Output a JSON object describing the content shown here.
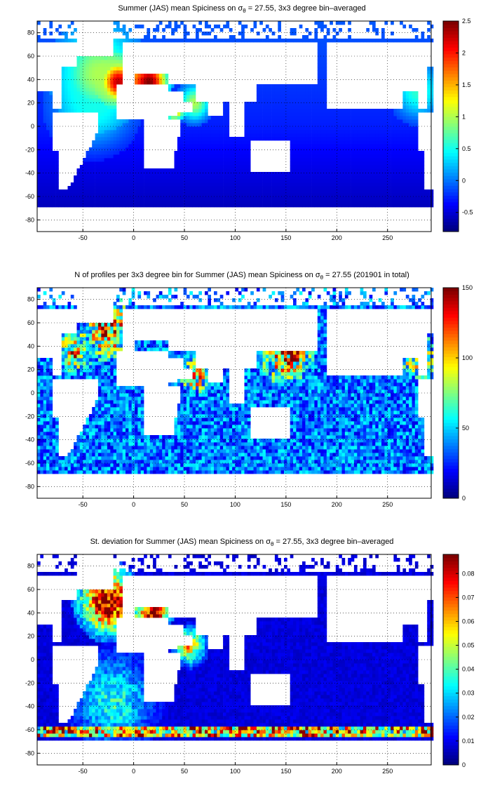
{
  "chart_data": [
    {
      "type": "heatmap",
      "title": {
        "pre": "Summer (JAS) mean Spiciness on ",
        "sym": "σ",
        "sub": "θ",
        "post": " = 27.55, 3x3 degree bin–averaged"
      },
      "xticks": [
        "-50",
        "0",
        "50",
        "100",
        "150",
        "200",
        "250"
      ],
      "yticks": [
        "80",
        "60",
        "40",
        "20",
        "0",
        "-20",
        "-40",
        "-60",
        "-80"
      ],
      "xlim": [
        -95,
        293
      ],
      "ylim": [
        -90,
        90
      ],
      "colorbar": {
        "min": -0.8,
        "max": 2.5,
        "ticks": [
          "2.5",
          "2",
          "1.5",
          "1",
          "0.5",
          "0",
          "-0.5"
        ]
      },
      "features": {
        "base": -0.3,
        "hotspots": [
          {
            "lon": -15,
            "lat": 38,
            "value": 2.3,
            "radius": 12
          },
          {
            "lon": -35,
            "lat": 45,
            "value": 1.0,
            "radius": 25
          },
          {
            "lon": 15,
            "lat": 38,
            "value": 2.5,
            "radius": 12
          },
          {
            "lon": 40,
            "lat": 15,
            "value": 2.2,
            "radius": 6
          },
          {
            "lon": 60,
            "lat": 20,
            "value": 1.0,
            "radius": 10
          },
          {
            "lon": -40,
            "lat": 20,
            "value": 0.5,
            "radius": 25
          },
          {
            "lon": 280,
            "lat": 30,
            "value": 0.6,
            "radius": 15
          }
        ]
      }
    },
    {
      "type": "heatmap",
      "title": {
        "pre": "N of profiles per 3x3 degree bin for Summer (JAS) mean Spiciness on ",
        "sym": "σ",
        "sub": "θ",
        "post": " = 27.55 (201901 in total)"
      },
      "xticks": [
        "-50",
        "0",
        "50",
        "100",
        "150",
        "200",
        "250"
      ],
      "yticks": [
        "80",
        "60",
        "40",
        "20",
        "0",
        "-20",
        "-40",
        "-60",
        "-80"
      ],
      "xlim": [
        -95,
        293
      ],
      "ylim": [
        -90,
        90
      ],
      "colorbar": {
        "min": 0,
        "max": 150,
        "ticks": [
          "150",
          "100",
          "50",
          "0"
        ]
      },
      "features": {
        "base": 40,
        "hotspots": [
          {
            "lon": 150,
            "lat": 35,
            "value": 140,
            "radius": 14
          },
          {
            "lon": -25,
            "lat": 55,
            "value": 130,
            "radius": 14
          },
          {
            "lon": -60,
            "lat": 35,
            "value": 110,
            "radius": 10
          },
          {
            "lon": 60,
            "lat": 15,
            "value": 120,
            "radius": 8
          },
          {
            "lon": 280,
            "lat": 30,
            "value": 110,
            "radius": 10
          }
        ]
      }
    },
    {
      "type": "heatmap",
      "title": {
        "pre": "St. deviation for Summer (JAS) mean Spiciness on ",
        "sym": "σ",
        "sub": "θ",
        "post": " = 27.55, 3x3 degree bin–averaged"
      },
      "xticks": [
        "-50",
        "0",
        "50",
        "100",
        "150",
        "200",
        "250"
      ],
      "yticks": [
        "80",
        "60",
        "40",
        "20",
        "0",
        "-20",
        "-40",
        "-60",
        "-80"
      ],
      "xlim": [
        -95,
        293
      ],
      "ylim": [
        -90,
        90
      ],
      "colorbar": {
        "min": 0,
        "max": 0.088,
        "ticks": [
          "0.08",
          "0.07",
          "0.06",
          "0.05",
          "0.04",
          "0.03",
          "0.02",
          "0.01",
          "0"
        ]
      },
      "features": {
        "base": 0.008,
        "hotspots": [
          {
            "lon": -25,
            "lat": 50,
            "value": 0.088,
            "radius": 18
          },
          {
            "lon": 20,
            "lat": 40,
            "value": 0.088,
            "radius": 10
          },
          {
            "lon": 55,
            "lat": 12,
            "value": 0.06,
            "radius": 10
          },
          {
            "lon": -20,
            "lat": -35,
            "value": 0.035,
            "radius": 25
          }
        ],
        "band_lat": -62,
        "band_value": 0.07
      }
    }
  ]
}
